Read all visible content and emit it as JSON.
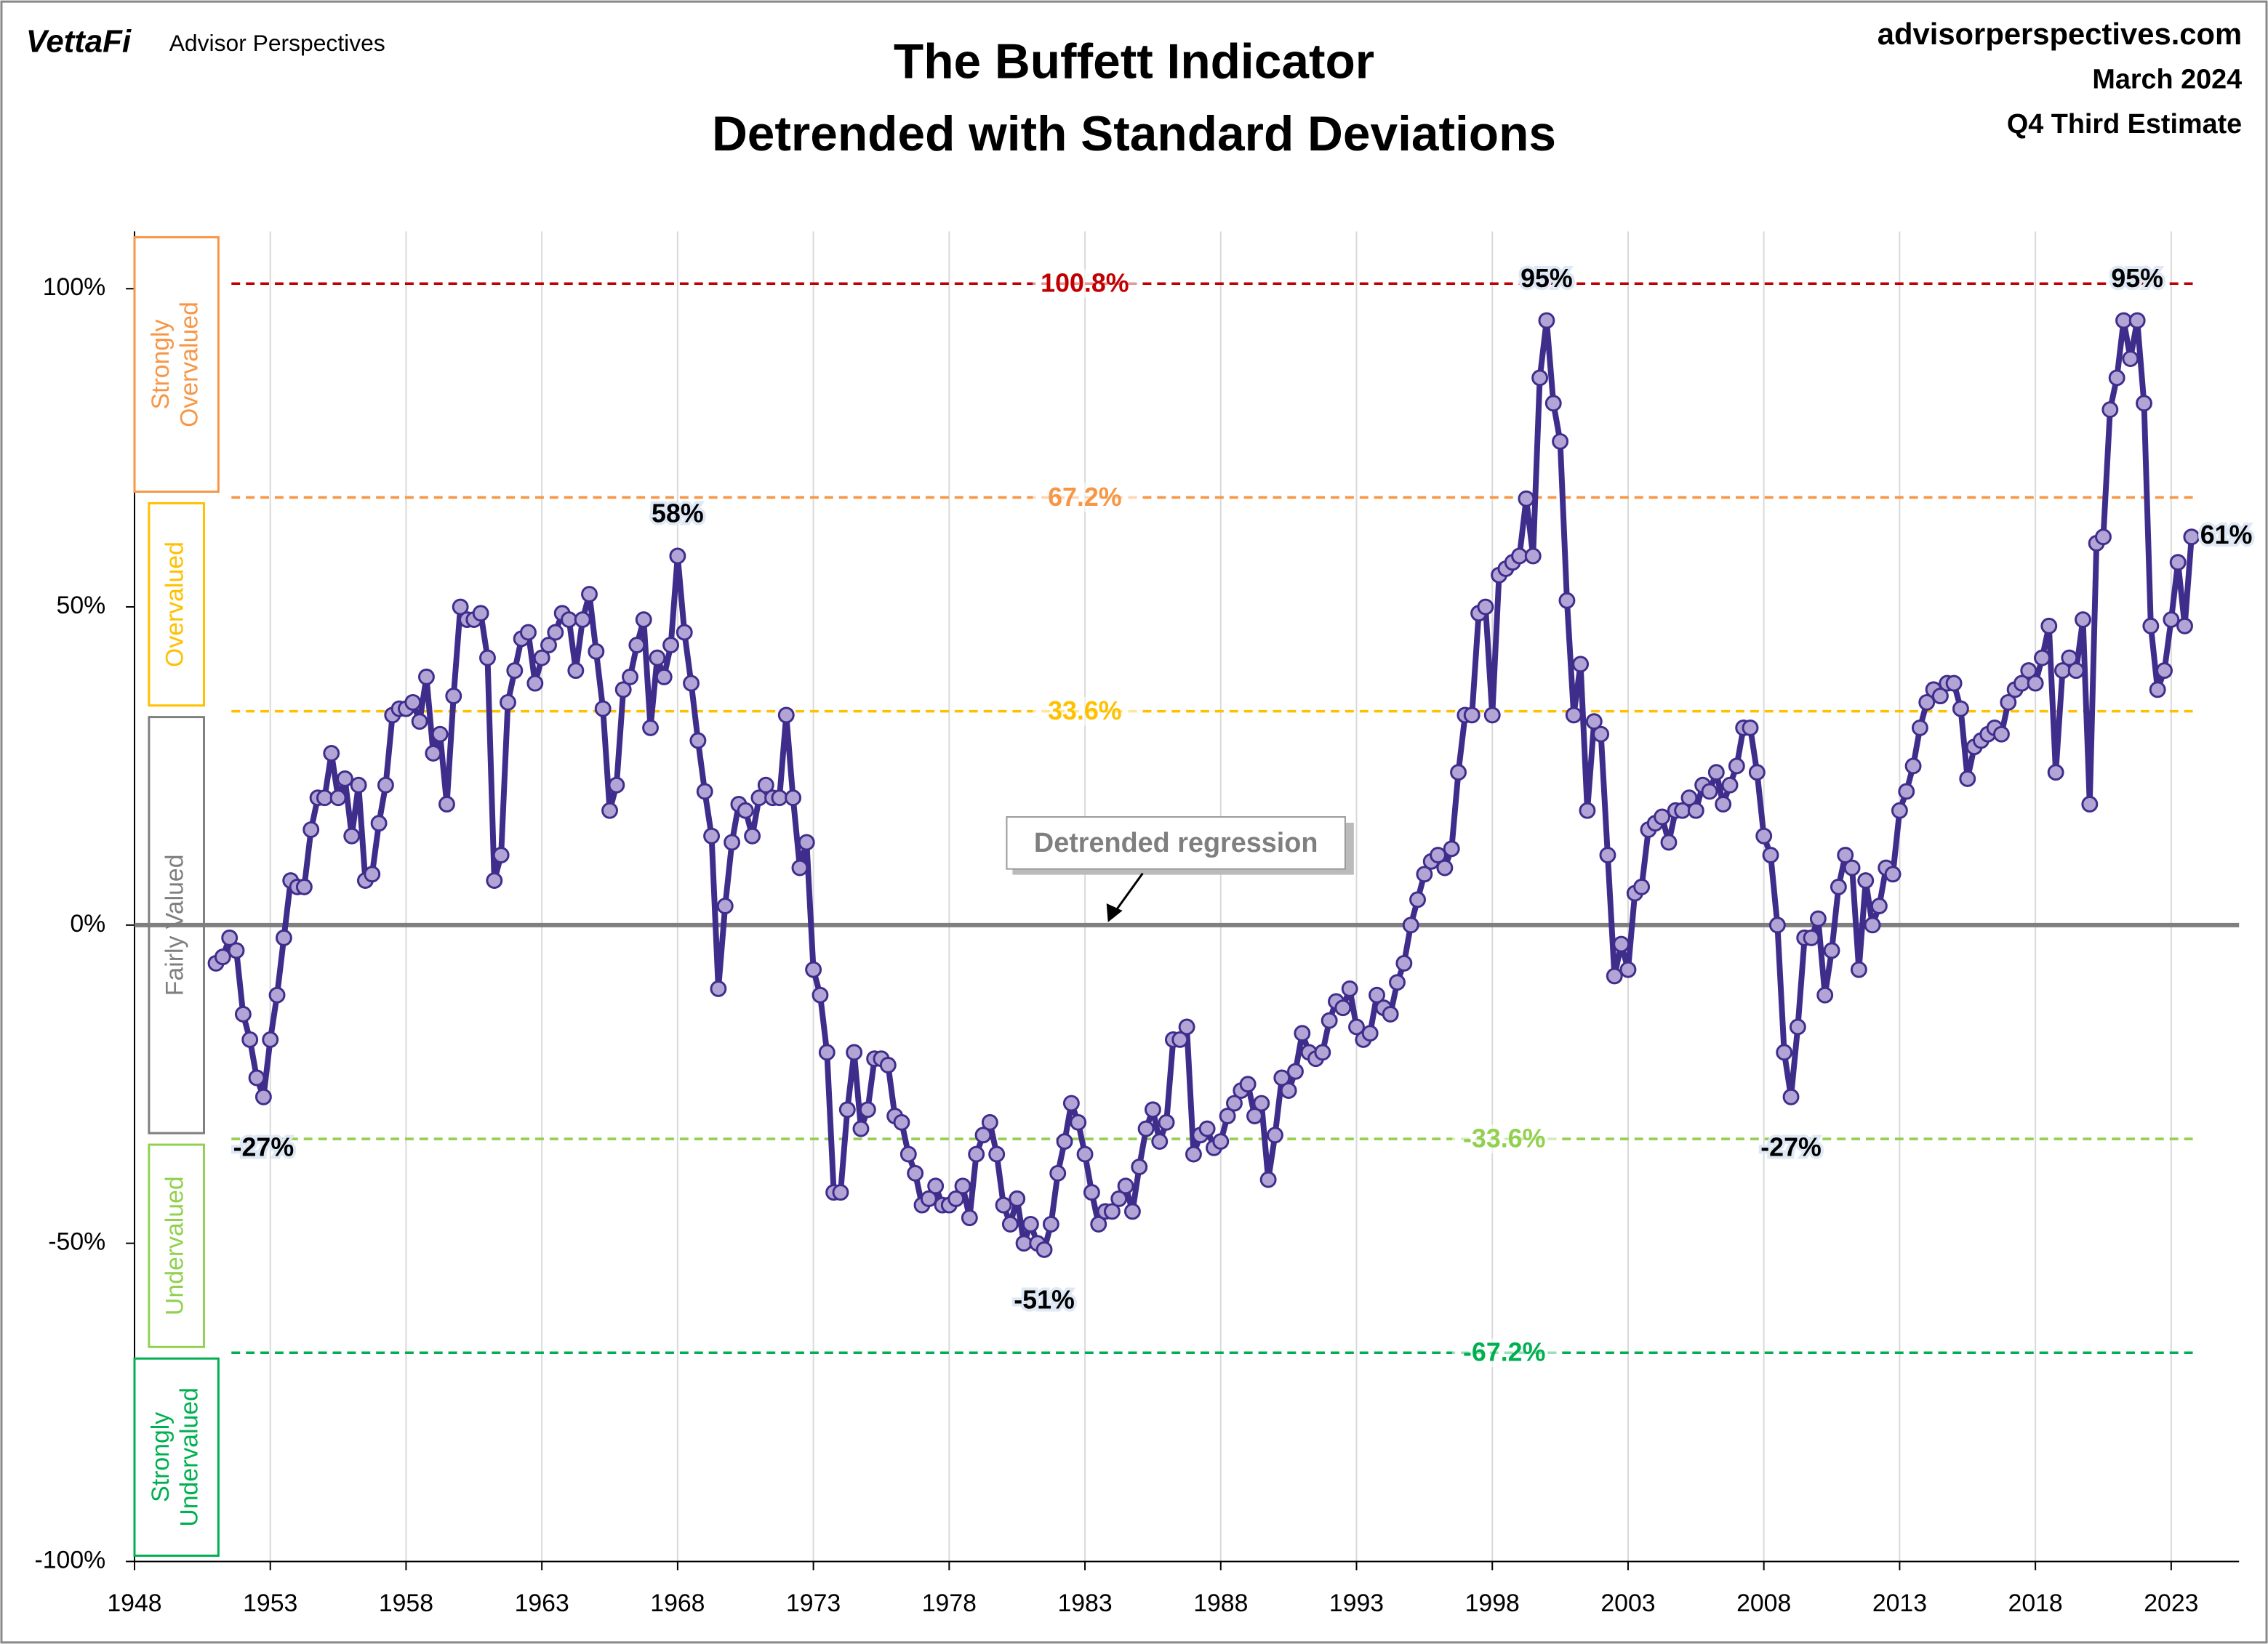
{
  "header": {
    "brand": "VettaFi",
    "publisher": "Advisor Perspectives",
    "site": "advisorperspectives.com",
    "date": "March 2024",
    "estimate": "Q4 Third Estimate"
  },
  "chart_data": {
    "type": "line",
    "title": "The Buffett Indicator",
    "subtitle": "Detrended with Standard Deviations",
    "annotation": "Detrended regression",
    "line_color": "#3f2d8c",
    "marker_color": "#b3a4d6",
    "grid": true,
    "xlim": [
      1948,
      2025.5
    ],
    "ylim": [
      -100,
      109
    ],
    "xticks": [
      1948,
      1953,
      1958,
      1963,
      1968,
      1973,
      1978,
      1983,
      1988,
      1993,
      1998,
      2003,
      2008,
      2013,
      2018,
      2023
    ],
    "yticks": [
      {
        "value": -100,
        "label": "-100%"
      },
      {
        "value": -50,
        "label": "-50%"
      },
      {
        "value": 0,
        "label": "0%"
      },
      {
        "value": 50,
        "label": "50%"
      },
      {
        "value": 100,
        "label": "100%"
      }
    ],
    "reference_lines": [
      {
        "value": 100.8,
        "label": "100.8%",
        "color": "#c00000"
      },
      {
        "value": 67.2,
        "label": "67.2%",
        "color": "#f79646"
      },
      {
        "value": 33.6,
        "label": "33.6%",
        "color": "#ffc000"
      },
      {
        "value": -33.6,
        "label": "-33.6%",
        "color": "#92d050"
      },
      {
        "value": -67.2,
        "label": "-67.2%",
        "color": "#00b050"
      }
    ],
    "zones": [
      {
        "label": "Strongly Overvalued",
        "color": "#f79646"
      },
      {
        "label": "Overvalued",
        "color": "#ffc000"
      },
      {
        "label": "Fairly Valued",
        "color": "#7f7f7f"
      },
      {
        "label": "Undervalued",
        "color": "#92d050"
      },
      {
        "label": "Strongly Undervalued",
        "color": "#00b050"
      }
    ],
    "x": [
      1951,
      1951.25,
      1951.5,
      1951.75,
      1952,
      1952.25,
      1952.5,
      1952.75,
      1953,
      1953.25,
      1953.5,
      1953.75,
      1954,
      1954.25,
      1954.5,
      1954.75,
      1955,
      1955.25,
      1955.5,
      1955.75,
      1956,
      1956.25,
      1956.5,
      1956.75,
      1957,
      1957.25,
      1957.5,
      1957.75,
      1958,
      1958.25,
      1958.5,
      1958.75,
      1959,
      1959.25,
      1959.5,
      1959.75,
      1960,
      1960.25,
      1960.5,
      1960.75,
      1961,
      1961.25,
      1961.5,
      1961.75,
      1962,
      1962.25,
      1962.5,
      1962.75,
      1963,
      1963.25,
      1963.5,
      1963.75,
      1964,
      1964.25,
      1964.5,
      1964.75,
      1965,
      1965.25,
      1965.5,
      1965.75,
      1966,
      1966.25,
      1966.5,
      1966.75,
      1967,
      1967.25,
      1967.5,
      1967.75,
      1968,
      1968.25,
      1968.5,
      1968.75,
      1969,
      1969.25,
      1969.5,
      1969.75,
      1970,
      1970.25,
      1970.5,
      1970.75,
      1971,
      1971.25,
      1971.5,
      1971.75,
      1972,
      1972.25,
      1972.5,
      1972.75,
      1973,
      1973.25,
      1973.5,
      1973.75,
      1974,
      1974.25,
      1974.5,
      1974.75,
      1975,
      1975.25,
      1975.5,
      1975.75,
      1976,
      1976.25,
      1976.5,
      1976.75,
      1977,
      1977.25,
      1977.5,
      1977.75,
      1978,
      1978.25,
      1978.5,
      1978.75,
      1979,
      1979.25,
      1979.5,
      1979.75,
      1980,
      1980.25,
      1980.5,
      1980.75,
      1981,
      1981.25,
      1981.5,
      1981.75,
      1982,
      1982.25,
      1982.5,
      1982.75,
      1983,
      1983.25,
      1983.5,
      1983.75,
      1984,
      1984.25,
      1984.5,
      1984.75,
      1985,
      1985.25,
      1985.5,
      1985.75,
      1986,
      1986.25,
      1986.5,
      1986.75,
      1987,
      1987.25,
      1987.5,
      1987.75,
      1988,
      1988.25,
      1988.5,
      1988.75,
      1989,
      1989.25,
      1989.5,
      1989.75,
      1990,
      1990.25,
      1990.5,
      1990.75,
      1991,
      1991.25,
      1991.5,
      1991.75,
      1992,
      1992.25,
      1992.5,
      1992.75,
      1993,
      1993.25,
      1993.5,
      1993.75,
      1994,
      1994.25,
      1994.5,
      1994.75,
      1995,
      1995.25,
      1995.5,
      1995.75,
      1996,
      1996.25,
      1996.5,
      1996.75,
      1997,
      1997.25,
      1997.5,
      1997.75,
      1998,
      1998.25,
      1998.5,
      1998.75,
      1999,
      1999.25,
      1999.5,
      1999.75,
      2000,
      2000.25,
      2000.5,
      2000.75,
      2001,
      2001.25,
      2001.5,
      2001.75,
      2002,
      2002.25,
      2002.5,
      2002.75,
      2003,
      2003.25,
      2003.5,
      2003.75,
      2004,
      2004.25,
      2004.5,
      2004.75,
      2005,
      2005.25,
      2005.5,
      2005.75,
      2006,
      2006.25,
      2006.5,
      2006.75,
      2007,
      2007.25,
      2007.5,
      2007.75,
      2008,
      2008.25,
      2008.5,
      2008.75,
      2009,
      2009.25,
      2009.5,
      2009.75,
      2010,
      2010.25,
      2010.5,
      2010.75,
      2011,
      2011.25,
      2011.5,
      2011.75,
      2012,
      2012.25,
      2012.5,
      2012.75,
      2013,
      2013.25,
      2013.5,
      2013.75,
      2014,
      2014.25,
      2014.5,
      2014.75,
      2015,
      2015.25,
      2015.5,
      2015.75,
      2016,
      2016.25,
      2016.5,
      2016.75,
      2017,
      2017.25,
      2017.5,
      2017.75,
      2018,
      2018.25,
      2018.5,
      2018.75,
      2019,
      2019.25,
      2019.5,
      2019.75,
      2020,
      2020.25,
      2020.5,
      2020.75,
      2021,
      2021.25,
      2021.5,
      2021.75,
      2022,
      2022.25,
      2022.5,
      2022.75,
      2023,
      2023.25,
      2023.5,
      2023.75
    ],
    "values": [
      -6,
      -5,
      -2,
      -4,
      -14,
      -18,
      -24,
      -27,
      -18,
      -11,
      -2,
      7,
      6,
      6,
      15,
      20,
      20,
      27,
      20,
      23,
      14,
      22,
      7,
      8,
      16,
      22,
      33,
      34,
      34,
      35,
      32,
      39,
      27,
      30,
      19,
      36,
      50,
      48,
      48,
      49,
      42,
      7,
      11,
      35,
      40,
      45,
      46,
      38,
      42,
      44,
      46,
      49,
      48,
      40,
      48,
      52,
      43,
      34,
      18,
      22,
      37,
      39,
      44,
      48,
      31,
      42,
      39,
      44,
      58,
      46,
      38,
      29,
      21,
      14,
      -10,
      3,
      13,
      19,
      18,
      14,
      20,
      22,
      20,
      20,
      33,
      20,
      9,
      13,
      -7,
      -11,
      -20,
      -42,
      -42,
      -29,
      -20,
      -32,
      -29,
      -21,
      -21,
      -22,
      -30,
      -31,
      -36,
      -39,
      -44,
      -43,
      -41,
      -44,
      -44,
      -43,
      -41,
      -46,
      -36,
      -33,
      -31,
      -36,
      -44,
      -47,
      -43,
      -50,
      -47,
      -50,
      -51,
      -47,
      -39,
      -34,
      -28,
      -31,
      -36,
      -42,
      -47,
      -45,
      -45,
      -43,
      -41,
      -45,
      -38,
      -32,
      -29,
      -34,
      -31,
      -18,
      -18,
      -16,
      -36,
      -33,
      -32,
      -35,
      -34,
      -30,
      -28,
      -26,
      -25,
      -30,
      -28,
      -40,
      -33,
      -24,
      -26,
      -23,
      -17,
      -20,
      -21,
      -20,
      -15,
      -12,
      -13,
      -10,
      -16,
      -18,
      -17,
      -11,
      -13,
      -14,
      -9,
      -6,
      0,
      4,
      8,
      10,
      11,
      9,
      12,
      24,
      33,
      33,
      49,
      50,
      33,
      55,
      56,
      57,
      58,
      67,
      58,
      86,
      95,
      82,
      76,
      51,
      33,
      41,
      18,
      32,
      30,
      11,
      -8,
      -3,
      -7,
      5,
      6,
      15,
      16,
      17,
      13,
      18,
      18,
      20,
      18,
      22,
      21,
      24,
      19,
      22,
      25,
      31,
      31,
      24,
      14,
      11,
      0,
      -20,
      -27,
      -16,
      -2,
      -2,
      1,
      -11,
      -4,
      6,
      11,
      9,
      -7,
      7,
      0,
      3,
      9,
      8,
      18,
      21,
      25,
      31,
      35,
      37,
      36,
      38,
      38,
      34,
      23,
      28,
      29,
      30,
      31,
      30,
      35,
      37,
      38,
      40,
      38,
      42,
      47,
      24,
      40,
      42,
      40,
      48,
      19,
      60,
      61,
      81,
      86,
      95,
      89,
      95,
      82,
      47,
      37,
      40,
      48,
      57,
      47,
      61
    ],
    "value_labels": [
      null,
      null,
      null,
      null,
      null,
      null,
      null,
      "-27%",
      null,
      null,
      null,
      null,
      null,
      null,
      null,
      null,
      null,
      null,
      null,
      null,
      null,
      null,
      null,
      null,
      null,
      null,
      null,
      null,
      null,
      null,
      null,
      null,
      null,
      null,
      null,
      null,
      null,
      null,
      null,
      null,
      null,
      null,
      null,
      null,
      null,
      null,
      null,
      null,
      null,
      null,
      null,
      null,
      null,
      null,
      null,
      null,
      null,
      null,
      null,
      null,
      null,
      null,
      null,
      null,
      null,
      null,
      null,
      null,
      "58%",
      null,
      null,
      null,
      null,
      null,
      null,
      null,
      null,
      null,
      null,
      null,
      null,
      null,
      null,
      null,
      null,
      null,
      null,
      null,
      null,
      null,
      null,
      null,
      null,
      null,
      null,
      null,
      null,
      null,
      null,
      null,
      null,
      null,
      null,
      null,
      null,
      null,
      null,
      null,
      null,
      null,
      null,
      null,
      null,
      null,
      null,
      null,
      null,
      null,
      null,
      null,
      null,
      null,
      "-51%",
      null,
      null,
      null,
      null,
      null,
      null,
      null,
      null,
      null,
      null,
      null,
      null,
      null,
      null,
      null,
      null,
      null,
      null,
      null,
      null,
      null,
      null,
      null,
      null,
      null,
      null,
      null,
      null,
      null,
      null,
      null,
      null,
      null,
      null,
      null,
      null,
      null,
      null,
      null,
      null,
      null,
      null,
      null,
      null,
      null,
      null,
      null,
      null,
      null,
      null,
      null,
      null,
      null,
      null,
      null,
      null,
      null,
      null,
      null,
      null,
      null,
      null,
      null,
      null,
      null,
      null,
      null,
      null,
      null,
      null,
      null,
      null,
      null,
      "95%",
      null,
      null,
      null,
      null,
      null,
      null,
      null,
      null,
      null,
      null,
      null,
      null,
      null,
      null,
      null,
      null,
      null,
      null,
      null,
      null,
      null,
      null,
      null,
      null,
      null,
      null,
      null,
      null,
      null,
      null,
      null,
      null,
      null,
      null,
      null,
      "-27%",
      null,
      null,
      null,
      null,
      null,
      null,
      null,
      null,
      null,
      null,
      null,
      null,
      null,
      null,
      null,
      null,
      null,
      null,
      null,
      null,
      null,
      null,
      null,
      null,
      null,
      null,
      null,
      null,
      null,
      null,
      null,
      null,
      null,
      null,
      null,
      null,
      null,
      null,
      null,
      null,
      null,
      null,
      null,
      null,
      null,
      null,
      null,
      null,
      null,
      null,
      "95%",
      null,
      null,
      null,
      null,
      null,
      null,
      null,
      "61%"
    ]
  }
}
